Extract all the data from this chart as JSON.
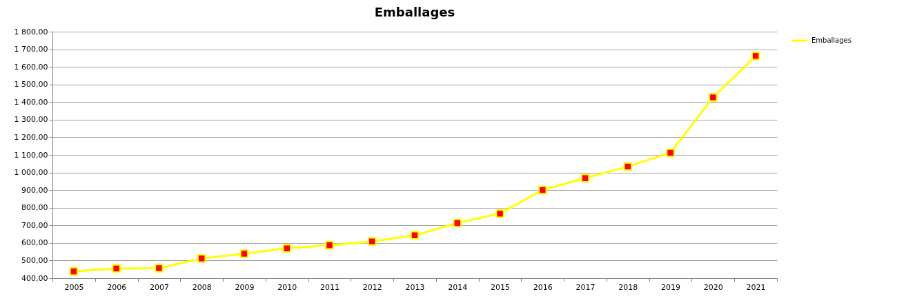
{
  "chart_data": {
    "type": "line",
    "title": "Emballages",
    "categories": [
      "2005",
      "2006",
      "2007",
      "2008",
      "2009",
      "2010",
      "2011",
      "2012",
      "2013",
      "2014",
      "2015",
      "2016",
      "2017",
      "2018",
      "2019",
      "2020",
      "2021"
    ],
    "series": [
      {
        "name": "Emballages",
        "color": "#ffff00",
        "values": [
          438,
          455,
          457,
          511,
          539,
          569,
          587,
          608,
          643,
          713,
          767,
          901,
          968,
          1034,
          1112,
          1427,
          1662
        ]
      }
    ],
    "ylim": [
      400,
      1800
    ],
    "yticks": [
      {
        "value": 400,
        "label": "400,00"
      },
      {
        "value": 500,
        "label": "500,00"
      },
      {
        "value": 600,
        "label": "600,00"
      },
      {
        "value": 700,
        "label": "700,00"
      },
      {
        "value": 800,
        "label": "800,00"
      },
      {
        "value": 900,
        "label": "900,00"
      },
      {
        "value": 1000,
        "label": "1 000,00"
      },
      {
        "value": 1100,
        "label": "1 100,00"
      },
      {
        "value": 1200,
        "label": "1 200,00"
      },
      {
        "value": 1300,
        "label": "1 300,00"
      },
      {
        "value": 1400,
        "label": "1 400,00"
      },
      {
        "value": 1500,
        "label": "1 500,00"
      },
      {
        "value": 1600,
        "label": "1 600,00"
      },
      {
        "value": 1700,
        "label": "1 700,00"
      },
      {
        "value": 1800,
        "label": "1 800,00"
      }
    ],
    "grid": "y",
    "legend": "right",
    "marker": "square",
    "line_style": "solid"
  }
}
